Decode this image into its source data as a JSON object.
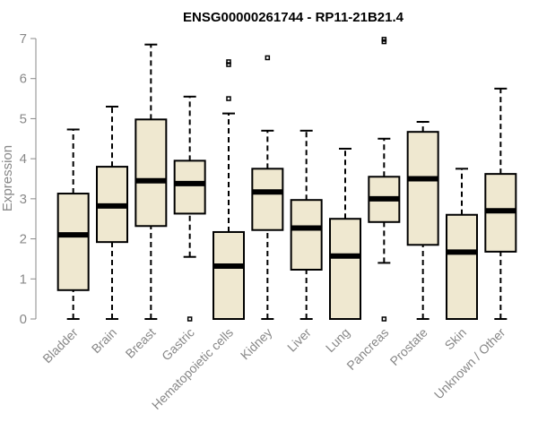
{
  "chart_data": {
    "type": "boxplot",
    "title": "ENSG00000261744 - RP11-21B21.4",
    "xlabel": "",
    "ylabel": "Expression",
    "ylim": [
      0,
      7
    ],
    "yticks": [
      0,
      1,
      2,
      3,
      4,
      5,
      6,
      7
    ],
    "categories": [
      "Bladder",
      "Brain",
      "Breast",
      "Gastric",
      "Hematopoietic cells",
      "Kidney",
      "Liver",
      "Lung",
      "Pancreas",
      "Prostate",
      "Skin",
      "Unknown / Other"
    ],
    "series": [
      {
        "name": "Bladder",
        "min": 0.0,
        "q1": 0.72,
        "median": 2.1,
        "q3": 3.13,
        "max": 4.73,
        "outliers": []
      },
      {
        "name": "Brain",
        "min": 0.0,
        "q1": 1.92,
        "median": 2.82,
        "q3": 3.8,
        "max": 5.3,
        "outliers": []
      },
      {
        "name": "Breast",
        "min": 0.0,
        "q1": 2.32,
        "median": 3.45,
        "q3": 4.98,
        "max": 6.85,
        "outliers": []
      },
      {
        "name": "Gastric",
        "min": 1.55,
        "q1": 2.63,
        "median": 3.38,
        "q3": 3.95,
        "max": 5.55,
        "outliers": [
          0.0
        ]
      },
      {
        "name": "Hematopoietic cells",
        "min": 0.0,
        "q1": 0.0,
        "median": 1.32,
        "q3": 2.17,
        "max": 5.13,
        "outliers": [
          5.5,
          6.35,
          6.42
        ]
      },
      {
        "name": "Kidney",
        "min": 0.0,
        "q1": 2.22,
        "median": 3.17,
        "q3": 3.75,
        "max": 4.7,
        "outliers": [
          6.52
        ]
      },
      {
        "name": "Liver",
        "min": 0.0,
        "q1": 1.23,
        "median": 2.27,
        "q3": 2.97,
        "max": 4.7,
        "outliers": []
      },
      {
        "name": "Lung",
        "min": 0.0,
        "q1": 0.0,
        "median": 1.57,
        "q3": 2.5,
        "max": 4.25,
        "outliers": []
      },
      {
        "name": "Pancreas",
        "min": 1.4,
        "q1": 2.42,
        "median": 3.0,
        "q3": 3.55,
        "max": 4.5,
        "outliers": [
          0.0,
          6.92,
          6.98
        ]
      },
      {
        "name": "Prostate",
        "min": 0.0,
        "q1": 1.85,
        "median": 3.5,
        "q3": 4.67,
        "max": 4.92,
        "outliers": []
      },
      {
        "name": "Skin",
        "min": 0.0,
        "q1": 0.0,
        "median": 1.67,
        "q3": 2.6,
        "max": 3.75,
        "outliers": []
      },
      {
        "name": "Unknown / Other",
        "min": 0.0,
        "q1": 1.68,
        "median": 2.7,
        "q3": 3.62,
        "max": 5.75,
        "outliers": []
      }
    ]
  }
}
